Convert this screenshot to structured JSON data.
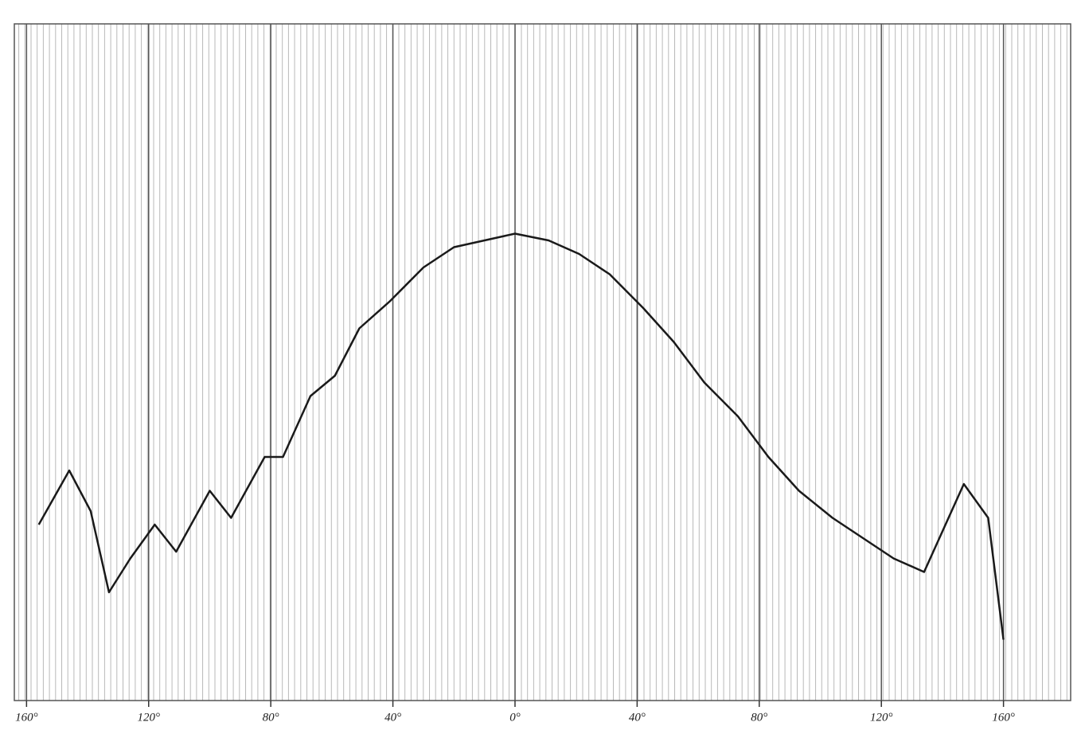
{
  "chart_data": {
    "type": "line",
    "x": [
      -156,
      -146,
      -139,
      -133,
      -126,
      -118,
      -111,
      -100,
      -93,
      -82,
      -76,
      -67,
      -59,
      -51,
      -41,
      -30,
      -20,
      -10,
      0,
      11,
      21,
      31,
      42,
      52,
      62,
      73,
      83,
      93,
      104,
      114,
      124,
      134,
      142,
      147,
      155,
      160
    ],
    "series": [
      {
        "color": "#1a1a1a",
        "values": [
          26,
          34,
          28,
          16,
          21,
          26,
          22,
          31,
          27,
          36,
          36,
          45,
          48,
          55,
          59,
          64,
          67,
          68,
          69,
          68,
          66,
          63,
          58,
          53,
          47,
          42,
          36,
          31,
          27,
          24,
          21,
          19,
          27,
          32,
          27,
          9
        ]
      }
    ],
    "xlim": [
      -164,
      182
    ],
    "ylim": [
      0,
      100
    ],
    "xticks": [
      {
        "value": -160,
        "label": "160°"
      },
      {
        "value": -120,
        "label": "120°"
      },
      {
        "value": -80,
        "label": "80°"
      },
      {
        "value": -40,
        "label": "40°"
      },
      {
        "value": 0,
        "label": "0°"
      },
      {
        "value": 40,
        "label": "40°"
      },
      {
        "value": 80,
        "label": "80°"
      },
      {
        "value": 120,
        "label": "120°"
      },
      {
        "value": 160,
        "label": "160°"
      }
    ],
    "grid": true
  }
}
